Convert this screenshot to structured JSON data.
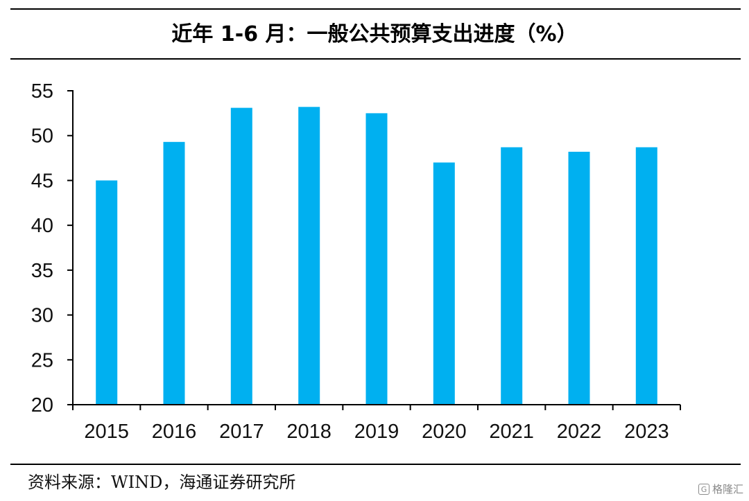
{
  "header": {
    "title": "近年 1-6 月：一般公共预算支出进度（%）"
  },
  "footer": {
    "source": "资料来源：WIND，海通证券研究所",
    "watermark": "格隆汇"
  },
  "colors": {
    "bar": "#00B0F0",
    "axis": "#000000"
  },
  "chart_data": {
    "type": "bar",
    "title": "近年 1-6 月：一般公共预算支出进度（%）",
    "categories": [
      "2015",
      "2016",
      "2017",
      "2018",
      "2019",
      "2020",
      "2021",
      "2022",
      "2023"
    ],
    "values": [
      45.0,
      49.3,
      53.1,
      53.2,
      52.5,
      47.0,
      48.7,
      48.2,
      48.7
    ],
    "ylim": [
      20,
      55
    ],
    "yticks": [
      "20",
      "25",
      "30",
      "35",
      "40",
      "45",
      "50",
      "55"
    ],
    "xlabel": "",
    "ylabel": "",
    "grid": false,
    "legend": "none"
  }
}
